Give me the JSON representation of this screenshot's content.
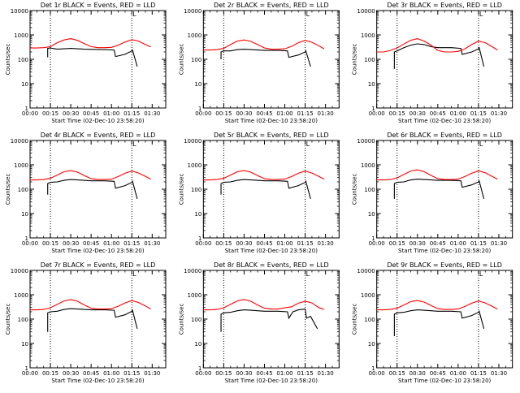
{
  "chart_data": [
    {
      "type": "line",
      "title": "Det 1r BLACK = Events, RED = LLD",
      "xlabel": "Start Time (02-Dec-10 23:58:20)",
      "ylabel": "Counts/sec",
      "x_ticks": [
        "00:00",
        "00:15",
        "00:30",
        "00:45",
        "01:00",
        "01:15",
        "01:30"
      ],
      "y_ticks": [
        "1",
        "10",
        "100",
        "1000",
        "10000"
      ],
      "y_scale": "log",
      "ylim": [
        1,
        10000
      ],
      "xlim_minutes": [
        0,
        100
      ],
      "vlines_minutes": [
        15,
        75
      ],
      "marker_label": "L",
      "series": [
        {
          "name": "BLACK = Events",
          "color": "#000000",
          "x": [
            13,
            13,
            15,
            20,
            25,
            30,
            35,
            40,
            45,
            55,
            62,
            63,
            70,
            75,
            75.5,
            79
          ],
          "y": [
            120,
            280,
            290,
            260,
            270,
            280,
            270,
            260,
            255,
            250,
            240,
            130,
            160,
            220,
            240,
            50
          ]
        },
        {
          "name": "RED = LLD",
          "color": "#ff0000",
          "x": [
            0,
            5,
            10,
            15,
            20,
            25,
            30,
            35,
            40,
            45,
            50,
            55,
            60,
            65,
            70,
            75,
            80,
            85,
            89
          ],
          "y": [
            290,
            290,
            300,
            330,
            480,
            620,
            700,
            600,
            440,
            330,
            300,
            300,
            310,
            380,
            510,
            640,
            560,
            400,
            320
          ]
        }
      ]
    },
    {
      "type": "line",
      "title": "Det 2r BLACK = Events, RED = LLD",
      "xlabel": "Start Time (02-Dec-10 23:58:20)",
      "ylabel": "Counts/sec",
      "x_ticks": [
        "00:00",
        "00:15",
        "00:30",
        "00:45",
        "01:00",
        "01:15",
        "01:30"
      ],
      "y_ticks": [
        "1",
        "10",
        "100",
        "1000",
        "10000"
      ],
      "y_scale": "log",
      "ylim": [
        1,
        10000
      ],
      "xlim_minutes": [
        0,
        100
      ],
      "vlines_minutes": [
        15,
        75
      ],
      "marker_label": "L",
      "series": [
        {
          "name": "BLACK = Events",
          "color": "#000000",
          "x": [
            13,
            13,
            15,
            20,
            25,
            30,
            35,
            40,
            45,
            55,
            62,
            63,
            70,
            75,
            75.5,
            79
          ],
          "y": [
            100,
            200,
            220,
            220,
            250,
            260,
            250,
            240,
            230,
            230,
            220,
            120,
            150,
            200,
            220,
            50
          ]
        },
        {
          "name": "RED = LLD",
          "color": "#ff0000",
          "x": [
            0,
            5,
            10,
            15,
            20,
            25,
            30,
            35,
            40,
            45,
            50,
            55,
            60,
            65,
            70,
            75,
            80,
            85,
            89
          ],
          "y": [
            240,
            240,
            250,
            280,
            400,
            560,
            620,
            540,
            400,
            290,
            260,
            260,
            270,
            340,
            480,
            600,
            500,
            360,
            270
          ]
        }
      ]
    },
    {
      "type": "line",
      "title": "Det 3r BLACK = Events, RED = LLD",
      "xlabel": "Start Time (02-Dec-10 23:58:20)",
      "ylabel": "Counts/sec",
      "x_ticks": [
        "00:00",
        "00:15",
        "00:30",
        "00:45",
        "01:00",
        "01:15",
        "01:30"
      ],
      "y_ticks": [
        "1",
        "10",
        "100",
        "1000",
        "10000"
      ],
      "y_scale": "log",
      "ylim": [
        1,
        10000
      ],
      "xlim_minutes": [
        0,
        100
      ],
      "vlines_minutes": [
        15,
        75
      ],
      "marker_label": "L",
      "series": [
        {
          "name": "BLACK = Events",
          "color": "#000000",
          "x": [
            13,
            13,
            15,
            20,
            25,
            30,
            35,
            40,
            45,
            55,
            62,
            63,
            70,
            75,
            75.5,
            79
          ],
          "y": [
            40,
            200,
            220,
            300,
            380,
            430,
            400,
            330,
            300,
            300,
            280,
            160,
            200,
            270,
            300,
            50
          ]
        },
        {
          "name": "RED = LLD",
          "color": "#ff0000",
          "x": [
            0,
            5,
            10,
            15,
            20,
            25,
            30,
            35,
            40,
            45,
            50,
            55,
            60,
            65,
            70,
            75,
            80,
            85,
            89
          ],
          "y": [
            200,
            200,
            230,
            290,
            420,
            600,
            700,
            560,
            380,
            230,
            200,
            200,
            210,
            270,
            400,
            560,
            480,
            330,
            240
          ]
        }
      ]
    },
    {
      "type": "line",
      "title": "Det 4r BLACK = Events, RED = LLD",
      "xlabel": "Start Time (02-Dec-10 23:58:20)",
      "ylabel": "Counts/sec",
      "x_ticks": [
        "00:00",
        "00:15",
        "00:30",
        "00:45",
        "01:00",
        "01:15",
        "01:30"
      ],
      "y_ticks": [
        "1",
        "10",
        "100",
        "1000",
        "10000"
      ],
      "y_scale": "log",
      "ylim": [
        1,
        10000
      ],
      "xlim_minutes": [
        0,
        100
      ],
      "vlines_minutes": [
        15,
        75
      ],
      "marker_label": "L",
      "series": [
        {
          "name": "BLACK = Events",
          "color": "#000000",
          "x": [
            13,
            13,
            15,
            20,
            25,
            30,
            35,
            40,
            45,
            55,
            62,
            63,
            70,
            75,
            75.5,
            79
          ],
          "y": [
            60,
            170,
            190,
            200,
            230,
            250,
            240,
            230,
            220,
            220,
            210,
            110,
            140,
            190,
            210,
            40
          ]
        },
        {
          "name": "RED = LLD",
          "color": "#ff0000",
          "x": [
            0,
            5,
            10,
            15,
            20,
            25,
            30,
            35,
            40,
            45,
            50,
            55,
            60,
            65,
            70,
            75,
            80,
            85,
            89
          ],
          "y": [
            240,
            240,
            250,
            280,
            380,
            520,
            580,
            500,
            360,
            270,
            250,
            250,
            260,
            330,
            450,
            560,
            460,
            340,
            260
          ]
        }
      ]
    },
    {
      "type": "line",
      "title": "Det 5r BLACK = Events, RED = LLD",
      "xlabel": "Start Time (02-Dec-10 23:58:20)",
      "ylabel": "Counts/sec",
      "x_ticks": [
        "00:00",
        "00:15",
        "00:30",
        "00:45",
        "01:00",
        "01:15",
        "01:30"
      ],
      "y_ticks": [
        "1",
        "10",
        "100",
        "1000",
        "10000"
      ],
      "y_scale": "log",
      "ylim": [
        1,
        10000
      ],
      "xlim_minutes": [
        0,
        100
      ],
      "vlines_minutes": [
        15,
        75
      ],
      "marker_label": "L",
      "series": [
        {
          "name": "BLACK = Events",
          "color": "#000000",
          "x": [
            13,
            13,
            15,
            20,
            25,
            30,
            35,
            40,
            45,
            55,
            62,
            63,
            70,
            75,
            75.5,
            79
          ],
          "y": [
            60,
            170,
            190,
            200,
            230,
            250,
            240,
            230,
            220,
            220,
            210,
            110,
            140,
            190,
            210,
            40
          ]
        },
        {
          "name": "RED = LLD",
          "color": "#ff0000",
          "x": [
            0,
            5,
            10,
            15,
            20,
            25,
            30,
            35,
            40,
            45,
            50,
            55,
            60,
            65,
            70,
            75,
            80,
            85,
            89
          ],
          "y": [
            240,
            240,
            250,
            280,
            380,
            520,
            580,
            500,
            360,
            270,
            250,
            250,
            260,
            330,
            450,
            560,
            460,
            340,
            260
          ]
        }
      ]
    },
    {
      "type": "line",
      "title": "Det 6r BLACK = Events, RED = LLD",
      "xlabel": "Start Time (02-Dec-10 23:58:20)",
      "ylabel": "Counts/sec",
      "x_ticks": [
        "00:00",
        "00:15",
        "00:30",
        "00:45",
        "01:00",
        "01:15",
        "01:30"
      ],
      "y_ticks": [
        "1",
        "10",
        "100",
        "1000",
        "10000"
      ],
      "y_scale": "log",
      "ylim": [
        1,
        10000
      ],
      "xlim_minutes": [
        0,
        100
      ],
      "vlines_minutes": [
        15,
        75
      ],
      "marker_label": "L",
      "series": [
        {
          "name": "BLACK = Events",
          "color": "#000000",
          "x": [
            13,
            13,
            15,
            20,
            25,
            30,
            35,
            40,
            45,
            55,
            62,
            63,
            70,
            75,
            75.5,
            79
          ],
          "y": [
            40,
            170,
            190,
            200,
            240,
            260,
            250,
            240,
            230,
            230,
            220,
            120,
            150,
            200,
            220,
            40
          ]
        },
        {
          "name": "RED = LLD",
          "color": "#ff0000",
          "x": [
            0,
            5,
            10,
            15,
            20,
            25,
            30,
            35,
            40,
            45,
            50,
            55,
            60,
            65,
            70,
            75,
            80,
            85,
            89
          ],
          "y": [
            240,
            240,
            250,
            290,
            400,
            560,
            620,
            520,
            370,
            270,
            250,
            250,
            260,
            330,
            450,
            570,
            470,
            340,
            260
          ]
        }
      ]
    },
    {
      "type": "line",
      "title": "Det 7r BLACK = Events, RED = LLD",
      "xlabel": "Start Time (02-Dec-10 23:58:20)",
      "ylabel": "Counts/sec",
      "x_ticks": [
        "00:00",
        "00:15",
        "00:30",
        "00:45",
        "01:00",
        "01:15",
        "01:30"
      ],
      "y_ticks": [
        "1",
        "10",
        "100",
        "1000",
        "10000"
      ],
      "y_scale": "log",
      "ylim": [
        1,
        10000
      ],
      "xlim_minutes": [
        0,
        100
      ],
      "vlines_minutes": [
        15,
        75
      ],
      "marker_label": "L",
      "series": [
        {
          "name": "BLACK = Events",
          "color": "#000000",
          "x": [
            13,
            13,
            15,
            20,
            25,
            30,
            35,
            40,
            45,
            55,
            62,
            63,
            70,
            75,
            75.5,
            79
          ],
          "y": [
            30,
            180,
            200,
            210,
            250,
            270,
            260,
            250,
            240,
            240,
            230,
            120,
            150,
            210,
            230,
            40
          ]
        },
        {
          "name": "RED = LLD",
          "color": "#ff0000",
          "x": [
            0,
            5,
            10,
            15,
            20,
            25,
            30,
            35,
            40,
            45,
            50,
            55,
            60,
            65,
            70,
            75,
            80,
            85,
            89
          ],
          "y": [
            240,
            240,
            250,
            290,
            400,
            560,
            640,
            540,
            380,
            280,
            260,
            260,
            270,
            340,
            460,
            580,
            480,
            350,
            260
          ]
        }
      ]
    },
    {
      "type": "line",
      "title": "Det 8r BLACK = Events, RED = LLD",
      "xlabel": "Start Time (02-Dec-10 23:58:20)",
      "ylabel": "Counts/sec",
      "x_ticks": [
        "00:00",
        "00:15",
        "00:30",
        "00:45",
        "01:00",
        "01:15",
        "01:30"
      ],
      "y_ticks": [
        "1",
        "10",
        "100",
        "1000",
        "10000"
      ],
      "y_scale": "log",
      "ylim": [
        1,
        10000
      ],
      "xlim_minutes": [
        0,
        100
      ],
      "vlines_minutes": [
        15,
        75
      ],
      "marker_label": "L",
      "series": [
        {
          "name": "BLACK = Events",
          "color": "#000000",
          "x": [
            13,
            13,
            15,
            20,
            25,
            30,
            35,
            40,
            45,
            55,
            62,
            63,
            66,
            70,
            75,
            76,
            79,
            84
          ],
          "y": [
            30,
            160,
            180,
            190,
            220,
            240,
            230,
            220,
            210,
            210,
            200,
            110,
            200,
            240,
            260,
            110,
            130,
            40
          ]
        },
        {
          "name": "RED = LLD",
          "color": "#ff0000",
          "x": [
            0,
            5,
            10,
            15,
            20,
            25,
            30,
            35,
            40,
            45,
            50,
            55,
            60,
            65,
            70,
            75,
            80,
            85,
            89
          ],
          "y": [
            240,
            240,
            250,
            290,
            400,
            560,
            640,
            540,
            380,
            280,
            260,
            260,
            290,
            320,
            450,
            540,
            460,
            300,
            250
          ]
        }
      ]
    },
    {
      "type": "line",
      "title": "Det 9r BLACK = Events, RED = LLD",
      "xlabel": "Start Time (02-Dec-10 23:58:20)",
      "ylabel": "Counts/sec",
      "x_ticks": [
        "00:00",
        "00:15",
        "00:30",
        "00:45",
        "01:00",
        "01:15",
        "01:30"
      ],
      "y_ticks": [
        "1",
        "10",
        "100",
        "1000",
        "10000"
      ],
      "y_scale": "log",
      "ylim": [
        1,
        10000
      ],
      "xlim_minutes": [
        0,
        100
      ],
      "vlines_minutes": [
        15,
        75
      ],
      "marker_label": "L",
      "series": [
        {
          "name": "BLACK = Events",
          "color": "#000000",
          "x": [
            13,
            13,
            15,
            20,
            25,
            30,
            35,
            40,
            45,
            55,
            62,
            63,
            70,
            75,
            75.5,
            79
          ],
          "y": [
            20,
            160,
            180,
            190,
            220,
            240,
            230,
            220,
            210,
            210,
            200,
            110,
            140,
            190,
            210,
            40
          ]
        },
        {
          "name": "RED = LLD",
          "color": "#ff0000",
          "x": [
            0,
            5,
            10,
            15,
            20,
            25,
            30,
            35,
            40,
            45,
            50,
            55,
            60,
            65,
            70,
            75,
            80,
            85,
            89
          ],
          "y": [
            240,
            240,
            250,
            280,
            380,
            520,
            580,
            500,
            360,
            270,
            250,
            250,
            260,
            330,
            450,
            560,
            460,
            340,
            260
          ]
        }
      ]
    }
  ]
}
